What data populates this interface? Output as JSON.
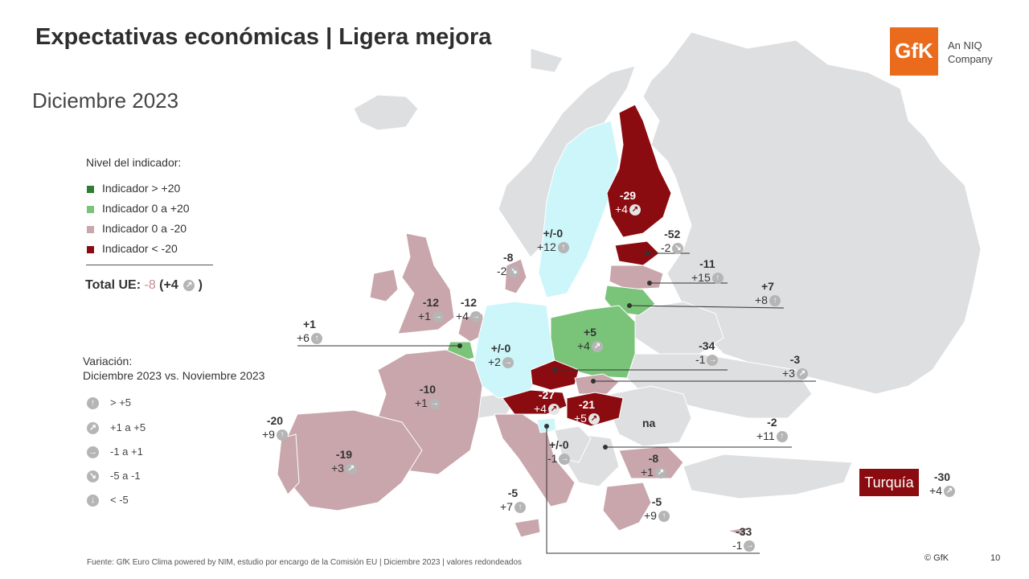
{
  "title": "Expectativas económicas | Ligera mejora",
  "subtitle": "Diciembre 2023",
  "logo": {
    "mark": "GfK",
    "sub1": "An NIQ",
    "sub2": "Company"
  },
  "legend": {
    "title": "Nivel del indicador:",
    "items": [
      {
        "label": "Indicador > +20",
        "color": "#2e7d32"
      },
      {
        "label": "Indicador 0 a +20",
        "color": "#7ac47a"
      },
      {
        "label": "Indicador 0 a -20",
        "color": "#c8a6ab"
      },
      {
        "label": "Indicador < -20",
        "color": "#8a0b10"
      }
    ]
  },
  "total": {
    "prefix": "Total UE: ",
    "value": "-8",
    "change": " (+4",
    "suffix": " )"
  },
  "variation": {
    "title1": "Variación:",
    "title2": "Diciembre 2023 vs. Noviembre 2023",
    "items": [
      {
        "icon": "arrow-up",
        "glyph": "↑",
        "label": "> +5"
      },
      {
        "icon": "arrow-up-right",
        "glyph": "↗",
        "label": "+1 a +5"
      },
      {
        "icon": "arrow-right",
        "glyph": "→",
        "label": "-1 a +1"
      },
      {
        "icon": "arrow-down-right",
        "glyph": "↘",
        "label": "-5 a -1"
      },
      {
        "icon": "arrow-down",
        "glyph": "↓",
        "label": "< -5"
      }
    ]
  },
  "countries": {
    "finland": {
      "level": "-29",
      "change": "+4"
    },
    "sweden": {
      "level": "+/-0",
      "change": "+12"
    },
    "estonia": {
      "level": "-52",
      "change": "-2"
    },
    "latvia": {
      "level": "-11",
      "change": "+15"
    },
    "lithuania": {
      "level": "+7",
      "change": "+8"
    },
    "denmark": {
      "level": "-8",
      "change": "-2"
    },
    "ireland": {
      "level": "-12",
      "change": "+1"
    },
    "netherlands": {
      "level": "-12",
      "change": "+4"
    },
    "belgium": {
      "level": "+1",
      "change": "+6"
    },
    "germany": {
      "level": "+/-0",
      "change": "+2"
    },
    "poland": {
      "level": "+5",
      "change": "+4"
    },
    "czechia": {
      "level": "-34",
      "change": "-1"
    },
    "slovakia": {
      "level": "-3",
      "change": "+3"
    },
    "france": {
      "level": "-10",
      "change": "+1"
    },
    "portugal": {
      "level": "-20",
      "change": "+9"
    },
    "spain": {
      "level": "-19",
      "change": "+3"
    },
    "austria": {
      "level": "-27",
      "change": "+4"
    },
    "hungary": {
      "level": "-21",
      "change": "+5"
    },
    "romania": {
      "level": "na"
    },
    "croatia": {
      "level": "+/-0",
      "change": "-1"
    },
    "bulgaria": {
      "level": "-8",
      "change": "+1"
    },
    "serbia_line": {
      "level": "-2",
      "change": "+11"
    },
    "italy": {
      "level": "-5",
      "change": "+7"
    },
    "greece": {
      "level": "-5",
      "change": "+9"
    },
    "cyprus": {
      "level": "-33",
      "change": "-1"
    },
    "turkey": {
      "name": "Turquía",
      "level": "-30",
      "change": "+4"
    }
  },
  "footer": "Fuente: GfK Euro Clima powered by NIM, estudio por encargo de la Comisión EU | Diciembre 2023 | valores redondeados",
  "copyright": "© GfK",
  "page_number": "10"
}
